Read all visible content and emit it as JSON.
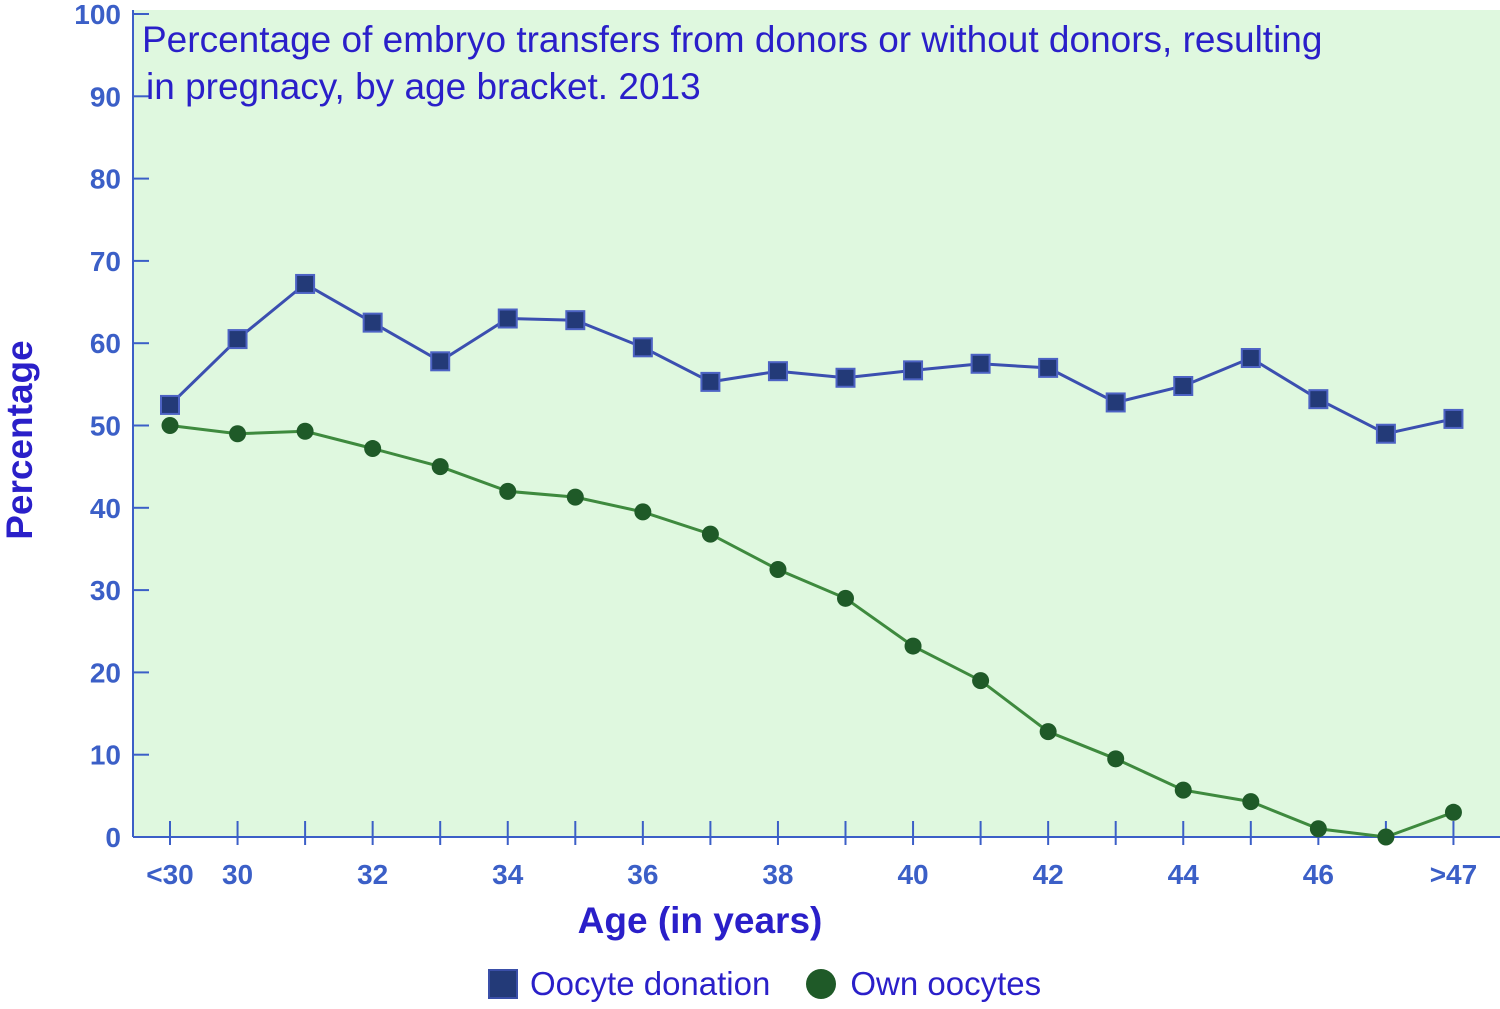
{
  "chart_data": {
    "type": "line",
    "title": "Percentage of embryo transfers from donors or without donors, resulting",
    "title_line2": "in pregnacy, by age bracket. 2013",
    "xlabel": "Age (in years)",
    "ylabel": "Percentage",
    "ylim": [
      0,
      100
    ],
    "yticks": [
      "0",
      "10",
      "20",
      "30",
      "40",
      "50",
      "60",
      "70",
      "80",
      "90",
      "100"
    ],
    "categories": [
      "<30",
      "30",
      "31",
      "32",
      "33",
      "34",
      "35",
      "36",
      "37",
      "38",
      "39",
      "40",
      "41",
      "42",
      "43",
      "44",
      "45",
      "46",
      "47",
      ">47"
    ],
    "xtick_labels": [
      "<30",
      "30",
      "",
      "32",
      "",
      "34",
      "",
      "36",
      "",
      "38",
      "",
      "40",
      "",
      "42",
      "",
      "44",
      "",
      "46",
      "",
      ">47"
    ],
    "grid": false,
    "legend_position": "bottom",
    "plot_background": "#dff8df",
    "series": [
      {
        "name": "Oocyte donation",
        "color": "#3b4fb0",
        "marker": "square",
        "marker_color": "#233a78",
        "values": [
          52.5,
          60.5,
          67.2,
          62.5,
          57.8,
          63.0,
          62.8,
          59.5,
          55.3,
          56.6,
          55.8,
          56.7,
          57.5,
          57.0,
          52.8,
          54.8,
          58.2,
          53.2,
          49.0,
          50.8
        ]
      },
      {
        "name": "Own oocytes",
        "color": "#3e8a3e",
        "marker": "circle",
        "marker_color": "#1f5a28",
        "values": [
          50.0,
          49.0,
          49.3,
          47.2,
          45.0,
          42.0,
          41.3,
          39.5,
          36.8,
          32.5,
          29.0,
          23.2,
          19.0,
          12.8,
          9.5,
          5.7,
          4.3,
          1.0,
          0.0,
          3.0
        ]
      }
    ]
  }
}
